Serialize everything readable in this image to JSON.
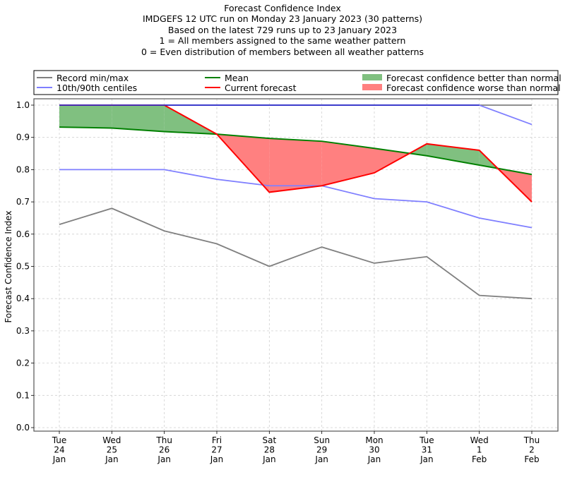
{
  "chart_data": {
    "type": "line",
    "title_lines": [
      "Forecast Confidence Index",
      "IMDGEFS 12 UTC run on Monday 23 January 2023 (30 patterns)",
      "Based on the latest 729 runs up to 23 January 2023",
      "1 = All members assigned to the same weather pattern",
      "0 = Even distribution of members between all weather patterns"
    ],
    "xlabel": "",
    "ylabel": "Forecast Confidence Index",
    "ylim": [
      0.0,
      1.0
    ],
    "yticks": [
      "0.0",
      "0.1",
      "0.2",
      "0.3",
      "0.4",
      "0.5",
      "0.6",
      "0.7",
      "0.8",
      "0.9",
      "1.0"
    ],
    "grid": true,
    "legend_position": "top, above plot",
    "categories": [
      [
        "Tue",
        "24",
        "Jan"
      ],
      [
        "Wed",
        "25",
        "Jan"
      ],
      [
        "Thu",
        "26",
        "Jan"
      ],
      [
        "Fri",
        "27",
        "Jan"
      ],
      [
        "Sat",
        "28",
        "Jan"
      ],
      [
        "Sun",
        "29",
        "Jan"
      ],
      [
        "Mon",
        "30",
        "Jan"
      ],
      [
        "Tue",
        "31",
        "Jan"
      ],
      [
        "Wed",
        "1",
        "Feb"
      ],
      [
        "Thu",
        "2",
        "Feb"
      ]
    ],
    "series": [
      {
        "name": "Record min",
        "legend": "Record min/max",
        "color": "#808080",
        "values": [
          0.63,
          0.68,
          0.61,
          0.57,
          0.5,
          0.56,
          0.51,
          0.53,
          0.41,
          0.4
        ]
      },
      {
        "name": "Record max",
        "legend": "Record min/max",
        "color": "#808080",
        "values": [
          1.0,
          1.0,
          1.0,
          1.0,
          1.0,
          1.0,
          1.0,
          1.0,
          1.0,
          1.0
        ]
      },
      {
        "name": "10th centile",
        "legend": "10th/90th centiles",
        "color": "#7f7fff",
        "values": [
          0.8,
          0.8,
          0.8,
          0.77,
          0.75,
          0.75,
          0.71,
          0.7,
          0.65,
          0.62
        ]
      },
      {
        "name": "90th centile",
        "legend": "10th/90th centiles",
        "color": "#7f7fff",
        "values": [
          1.0,
          1.0,
          1.0,
          1.0,
          1.0,
          1.0,
          1.0,
          1.0,
          1.0,
          0.94
        ]
      },
      {
        "name": "Mean",
        "legend": "Mean",
        "color": "#008000",
        "values": [
          0.932,
          0.929,
          0.918,
          0.91,
          0.897,
          0.888,
          0.866,
          0.843,
          0.814,
          0.785
        ]
      },
      {
        "name": "Current forecast",
        "legend": "Current forecast",
        "color": "#ff0000",
        "values": [
          1.0,
          1.0,
          1.0,
          0.91,
          0.73,
          0.75,
          0.79,
          0.88,
          0.86,
          0.7
        ]
      }
    ],
    "fills": [
      {
        "name": "Forecast confidence better than normal",
        "color": "#80c080"
      },
      {
        "name": "Forecast confidence worse than normal",
        "color": "#ff8080"
      }
    ],
    "legend": [
      {
        "label": "Record min/max",
        "kind": "line",
        "color": "#808080"
      },
      {
        "label": "10th/90th centiles",
        "kind": "line",
        "color": "#7f7fff"
      },
      {
        "label": "Mean",
        "kind": "line",
        "color": "#008000"
      },
      {
        "label": "Current forecast",
        "kind": "line",
        "color": "#ff0000"
      },
      {
        "label": "Forecast confidence better than normal",
        "kind": "patch",
        "color": "#80c080"
      },
      {
        "label": "Forecast confidence worse than normal",
        "kind": "patch",
        "color": "#ff8080"
      }
    ]
  }
}
